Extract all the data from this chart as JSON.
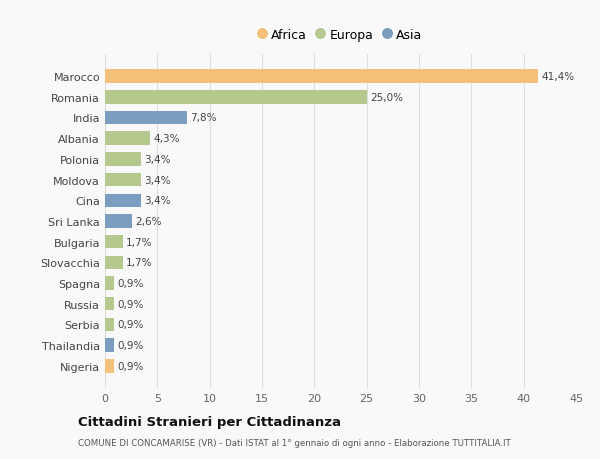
{
  "countries": [
    "Marocco",
    "Romania",
    "India",
    "Albania",
    "Polonia",
    "Moldova",
    "Cina",
    "Sri Lanka",
    "Bulgaria",
    "Slovacchia",
    "Spagna",
    "Russia",
    "Serbia",
    "Thailandia",
    "Nigeria"
  ],
  "values": [
    41.4,
    25.0,
    7.8,
    4.3,
    3.4,
    3.4,
    3.4,
    2.6,
    1.7,
    1.7,
    0.9,
    0.9,
    0.9,
    0.9,
    0.9
  ],
  "labels": [
    "41,4%",
    "25,0%",
    "7,8%",
    "4,3%",
    "3,4%",
    "3,4%",
    "3,4%",
    "2,6%",
    "1,7%",
    "1,7%",
    "0,9%",
    "0,9%",
    "0,9%",
    "0,9%",
    "0,9%"
  ],
  "continents": [
    "Africa",
    "Europa",
    "Asia",
    "Europa",
    "Europa",
    "Europa",
    "Asia",
    "Asia",
    "Europa",
    "Europa",
    "Europa",
    "Europa",
    "Europa",
    "Asia",
    "Africa"
  ],
  "colors": {
    "Africa": "#F5C07A",
    "Europa": "#B5C98E",
    "Asia": "#7B9DC0"
  },
  "legend_order": [
    "Africa",
    "Europa",
    "Asia"
  ],
  "xlim": [
    0,
    45
  ],
  "xticks": [
    0,
    5,
    10,
    15,
    20,
    25,
    30,
    35,
    40,
    45
  ],
  "title": "Cittadini Stranieri per Cittadinanza",
  "subtitle": "COMUNE DI CONCAMARISE (VR) - Dati ISTAT al 1° gennaio di ogni anno - Elaborazione TUTTITALIA.IT",
  "bg_color": "#f9f9f9",
  "bar_height": 0.65,
  "grid_color": "#dddddd"
}
